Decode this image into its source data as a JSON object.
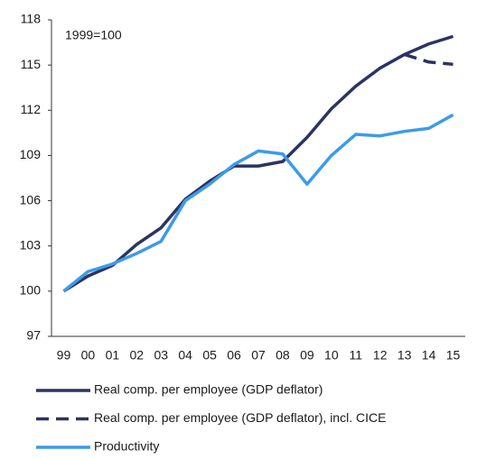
{
  "chart_data": {
    "type": "line",
    "annotation": "1999=100",
    "categories": [
      "99",
      "00",
      "01",
      "02",
      "03",
      "04",
      "05",
      "06",
      "07",
      "08",
      "09",
      "10",
      "11",
      "12",
      "13",
      "14",
      "15"
    ],
    "ylim": [
      97,
      118
    ],
    "yticks": [
      97,
      100,
      103,
      106,
      109,
      112,
      115,
      118
    ],
    "grid": false,
    "legend": "bottom",
    "series": [
      {
        "name": "Real comp. per employee (GDP deflator)",
        "color": "#2b3462",
        "dashed": false,
        "values": [
          100,
          101,
          101.7,
          103.1,
          104.2,
          106.1,
          107.3,
          108.3,
          108.3,
          108.6,
          110.2,
          112.1,
          113.6,
          114.8,
          115.7,
          116.4,
          116.9
        ]
      },
      {
        "name": "Real comp. per employee (GDP deflator), incl. CICE",
        "color": "#2b3462",
        "dashed": true,
        "values": [
          null,
          null,
          null,
          null,
          null,
          null,
          null,
          null,
          null,
          null,
          null,
          null,
          null,
          null,
          115.7,
          115.2,
          115.05
        ]
      },
      {
        "name": "Productivity",
        "color": "#3d9be9",
        "dashed": false,
        "values": [
          100,
          101.3,
          101.8,
          102.5,
          103.3,
          106.0,
          107.1,
          108.4,
          109.3,
          109.1,
          107.1,
          109.0,
          110.4,
          110.3,
          110.6,
          110.8,
          111.7
        ]
      }
    ]
  }
}
